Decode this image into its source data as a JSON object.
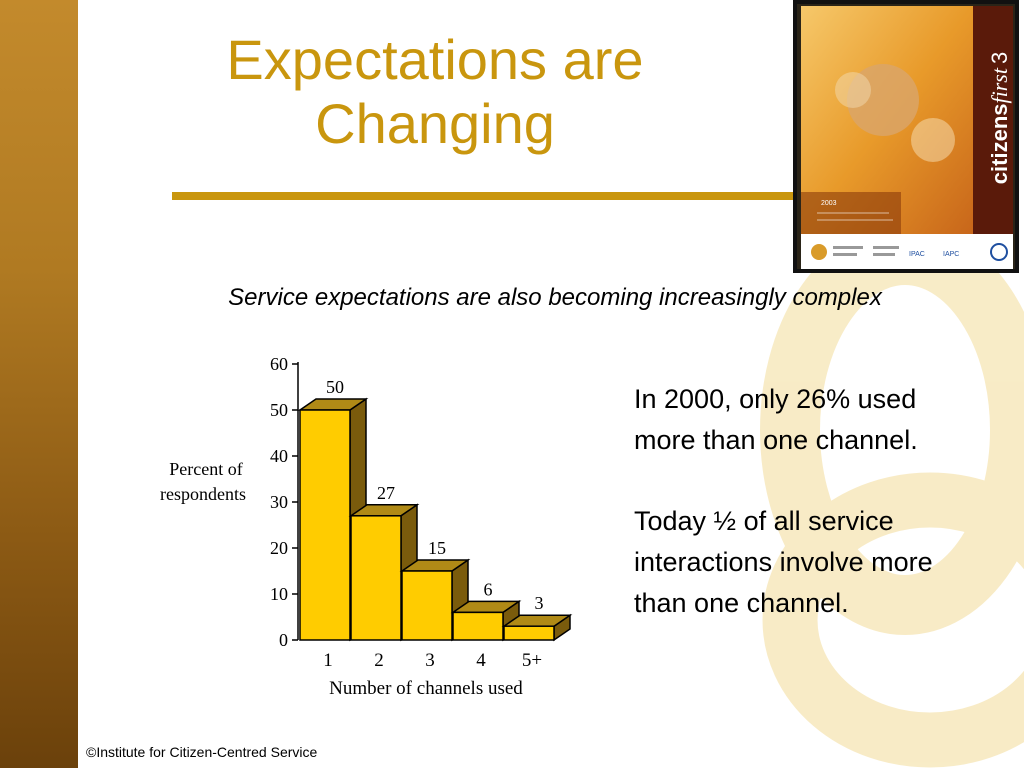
{
  "slide": {
    "title_line1": "Expectations are",
    "title_line2": "Changing",
    "subtitle": "Service expectations are also becoming increasingly complex",
    "notes": [
      "In 2000, only 26% used more than one channel.",
      "Today ½ of all service interactions involve more than one channel."
    ],
    "footer": "©Institute for Citizen-Centred Service"
  },
  "cover": {
    "brand": "citizens",
    "brand_italic": "first",
    "brand_number": "3",
    "year": "2003",
    "logos": [
      "IPAC",
      "IAPC"
    ]
  },
  "colors": {
    "accent": "#c9960e",
    "bar_front": "#ffcc00",
    "bar_side": "#7a5b0c",
    "bar_top": "#b08a16"
  },
  "chart_data": {
    "type": "bar",
    "categories": [
      "1",
      "2",
      "3",
      "4",
      "5+"
    ],
    "values": [
      50,
      27,
      15,
      6,
      3
    ],
    "value_labels": [
      "50",
      "27",
      "15",
      "6",
      "3"
    ],
    "ylim": [
      0,
      60
    ],
    "yticks": [
      "0",
      "10",
      "20",
      "30",
      "40",
      "50",
      "60"
    ],
    "xlabel": "Number of channels used",
    "ylabel": "Percent of respondents",
    "ylabel_lines": [
      "Percent of",
      "respondents"
    ],
    "grid": false,
    "bar_style": "3d"
  }
}
